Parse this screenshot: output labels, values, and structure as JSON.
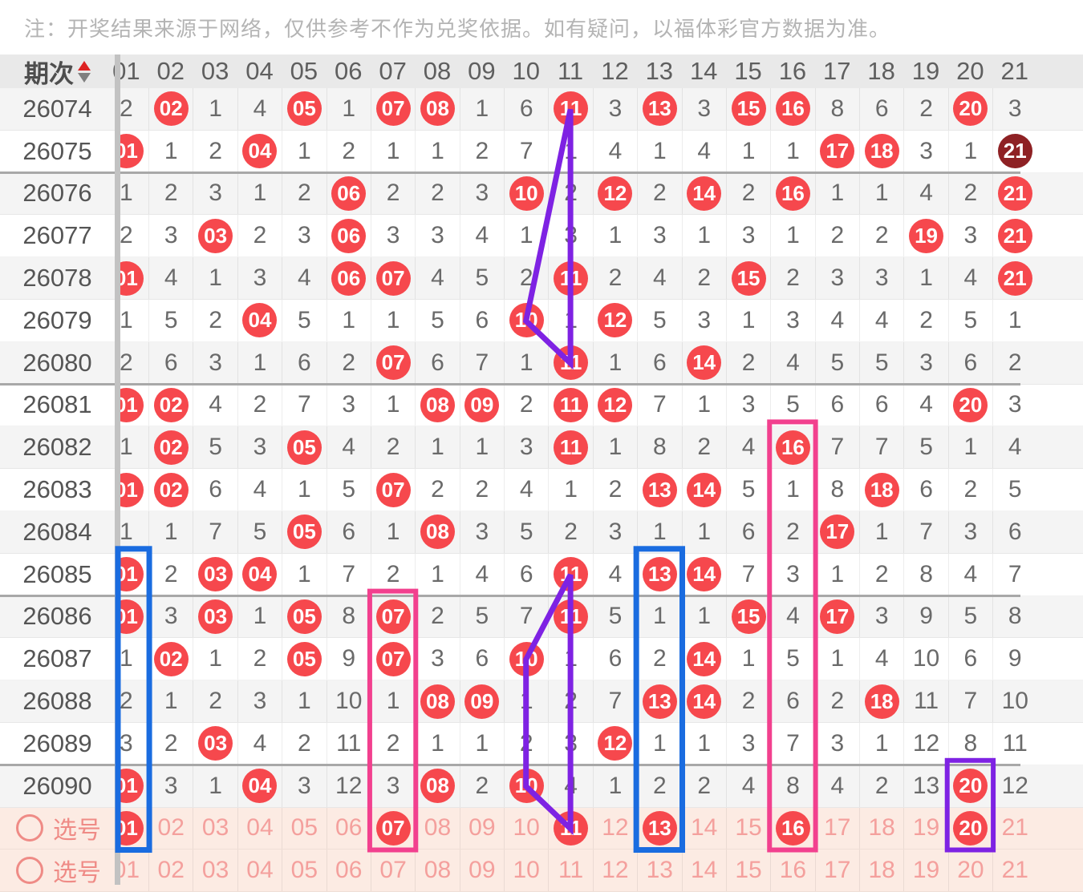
{
  "note": "注：开奖结果来源于网络，仅供参考不作为兑奖依据。如有疑问，以福体彩官方数据为准。",
  "header": {
    "period_label": "期次",
    "sort_icons": [
      "sort-up-red",
      "sort-down-gray"
    ],
    "columns": [
      "01",
      "02",
      "03",
      "04",
      "05",
      "06",
      "07",
      "08",
      "09",
      "10",
      "11",
      "12",
      "13",
      "14",
      "15",
      "16",
      "17",
      "18",
      "19",
      "20",
      "21"
    ]
  },
  "cell_token_legend": {
    "*": "drawn number shown as red ball",
    "#": "drawn number shown as dark red ball",
    "plain": "miss count since last draw"
  },
  "rows": [
    {
      "period": "26074",
      "cells": [
        "2",
        "*02",
        "1",
        "4",
        "*05",
        "1",
        "*07",
        "*08",
        "1",
        "6",
        "*11",
        "3",
        "*13",
        "3",
        "*15",
        "*16",
        "8",
        "6",
        "2",
        "*20",
        "3"
      ]
    },
    {
      "period": "26075",
      "cells": [
        "*01",
        "1",
        "2",
        "*04",
        "1",
        "2",
        "1",
        "1",
        "2",
        "7",
        "1",
        "4",
        "1",
        "4",
        "1",
        "1",
        "*17",
        "*18",
        "3",
        "1",
        "#21"
      ]
    },
    {
      "period": "26076",
      "cells": [
        "1",
        "2",
        "3",
        "1",
        "2",
        "*06",
        "2",
        "2",
        "3",
        "*10",
        "2",
        "*12",
        "2",
        "*14",
        "2",
        "*16",
        "1",
        "1",
        "4",
        "2",
        "*21"
      ]
    },
    {
      "period": "26077",
      "cells": [
        "2",
        "3",
        "*03",
        "2",
        "3",
        "*06",
        "3",
        "3",
        "4",
        "1",
        "3",
        "1",
        "3",
        "1",
        "3",
        "1",
        "2",
        "2",
        "*19",
        "3",
        "*21"
      ]
    },
    {
      "period": "26078",
      "cells": [
        "*01",
        "4",
        "1",
        "3",
        "4",
        "*06",
        "*07",
        "4",
        "5",
        "2",
        "*11",
        "2",
        "4",
        "2",
        "*15",
        "2",
        "3",
        "3",
        "1",
        "4",
        "*21"
      ]
    },
    {
      "period": "26079",
      "cells": [
        "1",
        "5",
        "2",
        "*04",
        "5",
        "1",
        "1",
        "5",
        "6",
        "*10",
        "1",
        "*12",
        "5",
        "3",
        "1",
        "3",
        "4",
        "4",
        "2",
        "5",
        "1"
      ]
    },
    {
      "period": "26080",
      "cells": [
        "2",
        "6",
        "3",
        "1",
        "6",
        "2",
        "*07",
        "6",
        "7",
        "1",
        "*11",
        "1",
        "6",
        "*14",
        "2",
        "4",
        "5",
        "5",
        "3",
        "6",
        "2"
      ]
    },
    {
      "period": "26081",
      "cells": [
        "*01",
        "*02",
        "4",
        "2",
        "7",
        "3",
        "1",
        "*08",
        "*09",
        "2",
        "*11",
        "*12",
        "7",
        "1",
        "3",
        "5",
        "6",
        "6",
        "4",
        "*20",
        "3"
      ]
    },
    {
      "period": "26082",
      "cells": [
        "1",
        "*02",
        "5",
        "3",
        "*05",
        "4",
        "2",
        "1",
        "1",
        "3",
        "*11",
        "1",
        "8",
        "2",
        "4",
        "*16",
        "7",
        "7",
        "5",
        "1",
        "4"
      ]
    },
    {
      "period": "26083",
      "cells": [
        "*01",
        "*02",
        "6",
        "4",
        "1",
        "5",
        "*07",
        "2",
        "2",
        "4",
        "1",
        "2",
        "*13",
        "*14",
        "5",
        "1",
        "8",
        "*18",
        "6",
        "2",
        "5"
      ]
    },
    {
      "period": "26084",
      "cells": [
        "1",
        "1",
        "7",
        "5",
        "*05",
        "6",
        "1",
        "*08",
        "3",
        "5",
        "2",
        "3",
        "1",
        "1",
        "6",
        "2",
        "*17",
        "1",
        "7",
        "3",
        "6"
      ]
    },
    {
      "period": "26085",
      "cells": [
        "*01",
        "2",
        "*03",
        "*04",
        "1",
        "7",
        "2",
        "1",
        "4",
        "6",
        "*11",
        "4",
        "*13",
        "*14",
        "7",
        "3",
        "1",
        "2",
        "8",
        "4",
        "7"
      ]
    },
    {
      "period": "26086",
      "cells": [
        "*01",
        "3",
        "*03",
        "1",
        "*05",
        "8",
        "*07",
        "2",
        "5",
        "7",
        "*11",
        "5",
        "1",
        "1",
        "*15",
        "4",
        "*17",
        "3",
        "9",
        "5",
        "8"
      ]
    },
    {
      "period": "26087",
      "cells": [
        "1",
        "*02",
        "1",
        "2",
        "*05",
        "9",
        "*07",
        "3",
        "6",
        "*10",
        "1",
        "6",
        "2",
        "*14",
        "1",
        "5",
        "1",
        "4",
        "10",
        "6",
        "9"
      ]
    },
    {
      "period": "26088",
      "cells": [
        "2",
        "1",
        "2",
        "3",
        "1",
        "10",
        "1",
        "*08",
        "*09",
        "1",
        "2",
        "7",
        "*13",
        "*14",
        "2",
        "6",
        "2",
        "*18",
        "11",
        "7",
        "10"
      ]
    },
    {
      "period": "26089",
      "cells": [
        "3",
        "2",
        "*03",
        "4",
        "2",
        "11",
        "2",
        "1",
        "1",
        "2",
        "3",
        "*12",
        "1",
        "1",
        "3",
        "7",
        "3",
        "1",
        "12",
        "8",
        "11"
      ]
    },
    {
      "period": "26090",
      "cells": [
        "*01",
        "3",
        "1",
        "*04",
        "3",
        "12",
        "3",
        "*08",
        "2",
        "*10",
        "4",
        "1",
        "2",
        "2",
        "4",
        "8",
        "4",
        "2",
        "13",
        "*20",
        "12"
      ]
    }
  ],
  "group_separator_after": [
    "26075",
    "26080",
    "26085",
    "26089"
  ],
  "select_rows": [
    {
      "label": "选号",
      "cells": [
        "*01",
        "02",
        "03",
        "04",
        "05",
        "06",
        "*07",
        "08",
        "09",
        "10",
        "*11",
        "12",
        "*13",
        "14",
        "15",
        "*16",
        "17",
        "18",
        "19",
        "*20",
        "21"
      ]
    },
    {
      "label": "选号",
      "cells": [
        "01",
        "02",
        "03",
        "04",
        "05",
        "06",
        "07",
        "08",
        "09",
        "10",
        "11",
        "12",
        "13",
        "14",
        "15",
        "16",
        "17",
        "18",
        "19",
        "20",
        "21"
      ]
    }
  ],
  "selected_numbers": [
    "01",
    "07",
    "11",
    "13",
    "16",
    "20"
  ],
  "annotations": {
    "rectangles": [
      {
        "column": 1,
        "from_period": "26085",
        "to_row": "select-1",
        "color": "blue"
      },
      {
        "column": 13,
        "from_period": "26085",
        "to_row": "select-1",
        "color": "blue"
      },
      {
        "column": 7,
        "from_period": "26086",
        "to_row": "select-1",
        "color": "pink"
      },
      {
        "column": 16,
        "from_period": "26082",
        "to_row": "select-1",
        "color": "pink"
      },
      {
        "column": 20,
        "from_period": "26090",
        "to_row": "select-1",
        "color": "purple"
      }
    ],
    "polygons": [
      {
        "color": "purple",
        "points": [
          [
            11,
            "26074"
          ],
          [
            10,
            "26079"
          ],
          [
            11,
            "26080"
          ]
        ]
      },
      {
        "color": "purple",
        "points": [
          [
            11,
            "26085"
          ],
          [
            10,
            "26087"
          ],
          [
            10,
            "26090"
          ],
          [
            11,
            "select-1"
          ]
        ]
      }
    ]
  },
  "colors": {
    "ball_red": "#f6484d",
    "ball_dark_red": "#8e2124",
    "annotation_blue": "#1a6ce0",
    "annotation_pink": "#f2408e",
    "annotation_purple": "#7e22e3",
    "select_pink": "#ef8b86",
    "pick_number_pink": "#f4a09d",
    "note_gray": "#b4b4b4",
    "row_alt_bg": "#f4f4f4",
    "row_bg": "#ffffff",
    "select_row_bg": "#fcebe3",
    "header_bg": "#e9e9e9",
    "divider_bar": "#c2c2c2",
    "group_line": "#a8a8a8"
  }
}
